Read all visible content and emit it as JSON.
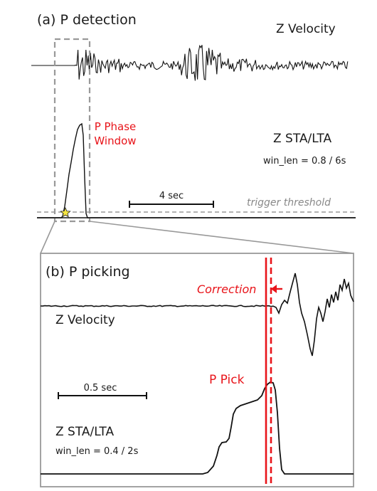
{
  "panel_a": {
    "title": "(a) P detection",
    "velocity_label": "Z  Velocity",
    "stalta_label": "Z  STA/LTA",
    "win_len": "win_len = 0.8 / 6s",
    "window_label_line1": "P Phase",
    "window_label_line2": "Window",
    "scale_bar": "4 sec",
    "threshold": "trigger threshold"
  },
  "panel_b": {
    "title": "(b) P picking",
    "velocity_label": "Z Velocity",
    "correction": "Correction",
    "pick": "P Pick",
    "scale_bar": "0.5 sec",
    "stalta_label": "Z STA/LTA",
    "win_len": "win_len = 0.4 / 2s"
  },
  "colors": {
    "trace": "#111111",
    "accent_red": "#e8141a",
    "window_box": "#999999",
    "threshold_line": "#999999",
    "star": "#f5e642"
  },
  "icons": {
    "trigger_marker": "star-icon",
    "correction_arrow": "arrow-left-icon"
  }
}
